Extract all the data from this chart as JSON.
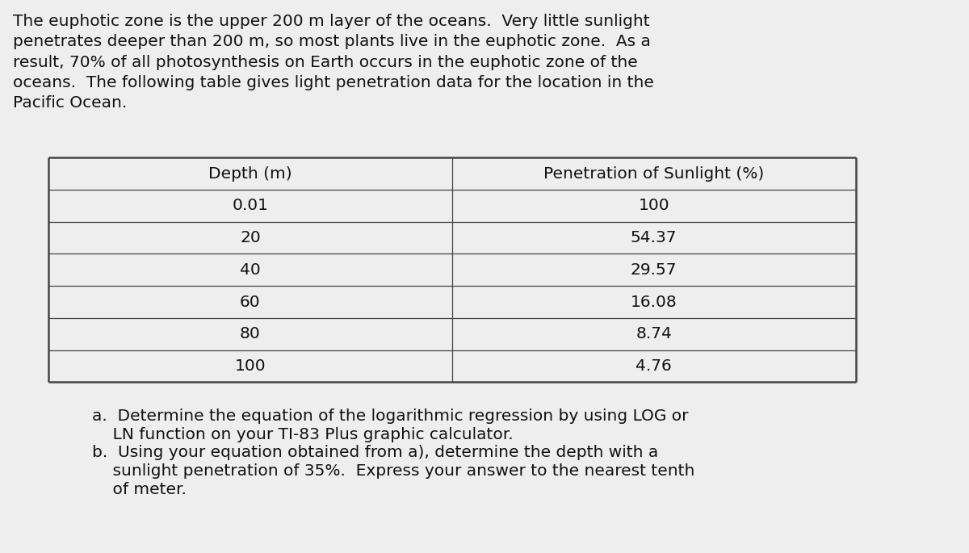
{
  "paragraph": "The euphotic zone is the upper 200 m layer of the oceans.  Very little sunlight\npenetrates deeper than 200 m, so most plants live in the euphotic zone.  As a\nresult, 70% of all photosynthesis on Earth occurs in the euphotic zone of the\noceans.  The following table gives light penetration data for the location in the\nPacific Ocean.",
  "table_header": [
    "Depth (m)",
    "Penetration of Sunlight (%)"
  ],
  "table_data": [
    [
      "0.01",
      "100"
    ],
    [
      "20",
      "54.37"
    ],
    [
      "40",
      "29.57"
    ],
    [
      "60",
      "16.08"
    ],
    [
      "80",
      "8.74"
    ],
    [
      "100",
      "4.76"
    ]
  ],
  "question_a_line1": "a.  Determine the equation of the logarithmic regression by using LOG or",
  "question_a_line2": "    LN function on your TI-83 Plus graphic calculator.",
  "question_b_line1": "b.  Using your equation obtained from a), determine the depth with a",
  "question_b_line2": "    sunlight penetration of 35%.  Express your answer to the nearest tenth",
  "question_b_line3": "    of meter.",
  "bg_color": "#eeeeee",
  "text_color": "#111111",
  "table_border_color": "#444444",
  "font_size_para": 14.5,
  "font_size_table": 14.5,
  "font_size_question": 14.5
}
